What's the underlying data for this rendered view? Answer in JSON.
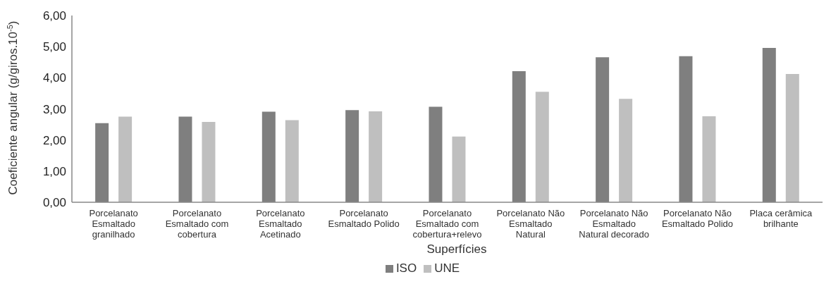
{
  "chart_data": {
    "type": "bar",
    "xlabel": "Superfícies",
    "ylabel": "Coeficiente angular (g/giros.10$^{-5}$)",
    "categories": [
      "Porcelanato\nEsmaltado\ngranilhado",
      "Porcelanato\nEsmaltado com\ncobertura",
      "Porcelanato\nEsmaltado\nAcetinado",
      "Porcelanato\nEsmaltado Polido",
      "Porcelanato\nEsmaltado com\ncobertura+relevo",
      "Porcelanato Não\nEsmaltado\nNatural",
      "Porcelanato Não\nEsmaltado\nNatural decorado",
      "Porcelanato Não\nEsmaltado Polido",
      "Placa cerâmica\nbrilhante"
    ],
    "series": [
      {
        "name": "ISO",
        "color": "#7f7f7f",
        "values": [
          2.54,
          2.75,
          2.91,
          2.96,
          3.07,
          4.21,
          4.66,
          4.69,
          4.96
        ]
      },
      {
        "name": "UNE",
        "color": "#bfbfbf",
        "values": [
          2.75,
          2.58,
          2.64,
          2.92,
          2.11,
          3.55,
          3.32,
          2.76,
          4.12
        ]
      }
    ],
    "ylim": [
      0,
      6
    ],
    "yticks": [
      {
        "value": 0,
        "label": "0,00"
      },
      {
        "value": 1,
        "label": "1,00"
      },
      {
        "value": 2,
        "label": "2,00"
      },
      {
        "value": 3,
        "label": "3,00"
      },
      {
        "value": 4,
        "label": "4,00"
      },
      {
        "value": 5,
        "label": "5,00"
      },
      {
        "value": 6,
        "label": "6,00"
      }
    ],
    "grid": false,
    "legend": "bottom"
  }
}
